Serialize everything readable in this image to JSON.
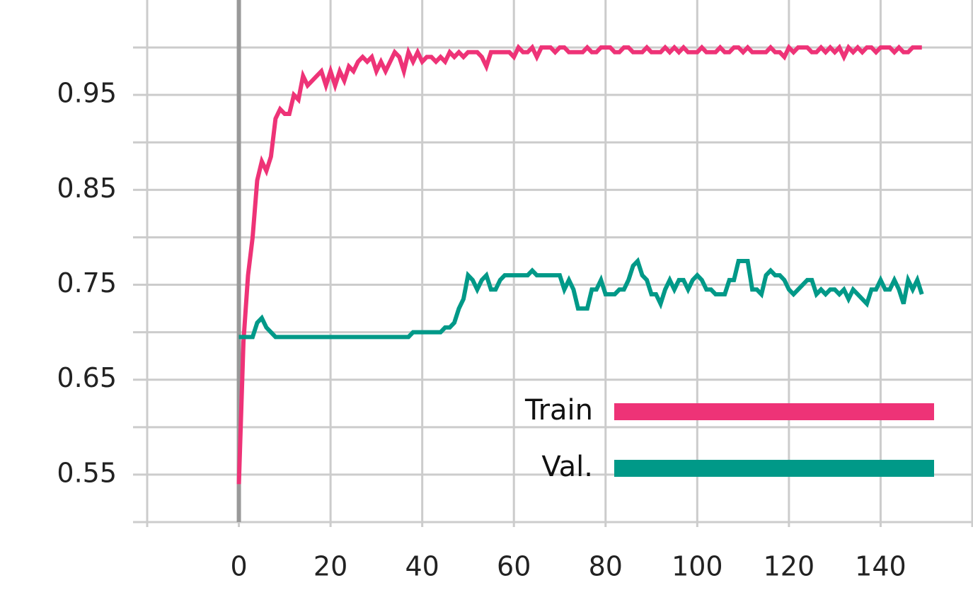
{
  "chart_data": {
    "type": "line",
    "x": [
      0,
      1,
      2,
      3,
      4,
      5,
      6,
      7,
      8,
      9,
      10,
      11,
      12,
      13,
      14,
      15,
      16,
      17,
      18,
      19,
      20,
      21,
      22,
      23,
      24,
      25,
      26,
      27,
      28,
      29,
      30,
      31,
      32,
      33,
      34,
      35,
      36,
      37,
      38,
      39,
      40,
      41,
      42,
      43,
      44,
      45,
      46,
      47,
      48,
      49,
      50,
      51,
      52,
      53,
      54,
      55,
      56,
      57,
      58,
      59,
      60,
      61,
      62,
      63,
      64,
      65,
      66,
      67,
      68,
      69,
      70,
      71,
      72,
      73,
      74,
      75,
      76,
      77,
      78,
      79,
      80,
      81,
      82,
      83,
      84,
      85,
      86,
      87,
      88,
      89,
      90,
      91,
      92,
      93,
      94,
      95,
      96,
      97,
      98,
      99,
      100,
      101,
      102,
      103,
      104,
      105,
      106,
      107,
      108,
      109,
      110,
      111,
      112,
      113,
      114,
      115,
      116,
      117,
      118,
      119,
      120,
      121,
      122,
      123,
      124,
      125,
      126,
      127,
      128,
      129,
      130,
      131,
      132,
      133,
      134,
      135,
      136,
      137,
      138,
      139,
      140,
      141,
      142,
      143,
      144,
      145,
      146,
      147,
      148,
      149
    ],
    "series": [
      {
        "name": "Train",
        "color": "#ee3377",
        "values": [
          0.54,
          0.69,
          0.76,
          0.8,
          0.86,
          0.88,
          0.87,
          0.885,
          0.925,
          0.935,
          0.93,
          0.93,
          0.95,
          0.945,
          0.97,
          0.96,
          0.965,
          0.97,
          0.975,
          0.96,
          0.975,
          0.96,
          0.975,
          0.965,
          0.98,
          0.975,
          0.985,
          0.99,
          0.985,
          0.99,
          0.975,
          0.985,
          0.975,
          0.985,
          0.995,
          0.99,
          0.975,
          0.995,
          0.985,
          0.995,
          0.985,
          0.99,
          0.99,
          0.985,
          0.99,
          0.985,
          0.995,
          0.99,
          0.995,
          0.99,
          0.995,
          0.995,
          0.995,
          0.99,
          0.98,
          0.995,
          0.995,
          0.995,
          0.995,
          0.995,
          0.99,
          1.0,
          0.995,
          0.995,
          1.0,
          0.99,
          1.0,
          1.0,
          1.0,
          0.995,
          1.0,
          1.0,
          0.995,
          0.995,
          0.995,
          0.995,
          1.0,
          0.995,
          0.995,
          1.0,
          1.0,
          1.0,
          0.995,
          0.995,
          1.0,
          1.0,
          0.995,
          0.995,
          0.995,
          1.0,
          0.995,
          0.995,
          0.995,
          1.0,
          0.995,
          1.0,
          0.995,
          1.0,
          0.995,
          0.995,
          0.995,
          1.0,
          0.995,
          0.995,
          0.995,
          1.0,
          0.995,
          0.995,
          1.0,
          1.0,
          0.995,
          1.0,
          0.995,
          0.995,
          0.995,
          0.995,
          1.0,
          0.995,
          0.995,
          0.99,
          1.0,
          0.995,
          1.0,
          1.0,
          1.0,
          0.995,
          0.995,
          1.0,
          0.995,
          1.0,
          0.995,
          1.0,
          0.99,
          1.0,
          0.995,
          1.0,
          0.995,
          1.0,
          1.0,
          0.995,
          1.0,
          1.0,
          1.0,
          0.995,
          1.0,
          0.995,
          0.995,
          1.0,
          1.0,
          1.0
        ]
      },
      {
        "name": "Val.",
        "color": "#009988",
        "values": [
          0.695,
          0.695,
          0.695,
          0.695,
          0.71,
          0.715,
          0.705,
          0.7,
          0.695,
          0.695,
          0.695,
          0.695,
          0.695,
          0.695,
          0.695,
          0.695,
          0.695,
          0.695,
          0.695,
          0.695,
          0.695,
          0.695,
          0.695,
          0.695,
          0.695,
          0.695,
          0.695,
          0.695,
          0.695,
          0.695,
          0.695,
          0.695,
          0.695,
          0.695,
          0.695,
          0.695,
          0.695,
          0.695,
          0.7,
          0.7,
          0.7,
          0.7,
          0.7,
          0.7,
          0.7,
          0.705,
          0.705,
          0.71,
          0.725,
          0.735,
          0.76,
          0.755,
          0.745,
          0.755,
          0.76,
          0.745,
          0.745,
          0.755,
          0.76,
          0.76,
          0.76,
          0.76,
          0.76,
          0.76,
          0.765,
          0.76,
          0.76,
          0.76,
          0.76,
          0.76,
          0.76,
          0.745,
          0.755,
          0.745,
          0.725,
          0.725,
          0.725,
          0.745,
          0.745,
          0.755,
          0.74,
          0.74,
          0.74,
          0.745,
          0.745,
          0.755,
          0.77,
          0.775,
          0.76,
          0.755,
          0.74,
          0.74,
          0.73,
          0.745,
          0.755,
          0.745,
          0.755,
          0.755,
          0.745,
          0.755,
          0.76,
          0.755,
          0.745,
          0.745,
          0.74,
          0.74,
          0.74,
          0.755,
          0.755,
          0.775,
          0.775,
          0.775,
          0.745,
          0.745,
          0.74,
          0.76,
          0.765,
          0.76,
          0.76,
          0.755,
          0.745,
          0.74,
          0.745,
          0.75,
          0.755,
          0.755,
          0.74,
          0.745,
          0.74,
          0.745,
          0.745,
          0.74,
          0.745,
          0.735,
          0.745,
          0.74,
          0.735,
          0.73,
          0.745,
          0.745,
          0.755,
          0.745,
          0.745,
          0.755,
          0.745,
          0.73,
          0.755,
          0.745,
          0.755,
          0.74
        ]
      }
    ],
    "xlim": [
      -20,
      160
    ],
    "xticks": [
      0,
      20,
      40,
      60,
      80,
      100,
      120,
      140
    ],
    "xminorticks": [
      -20,
      160
    ],
    "ylim": [
      0.5,
      1.05
    ],
    "yticks": [
      0.55,
      0.65,
      0.75,
      0.85,
      0.95
    ],
    "yminorticks": [
      0.5,
      0.6,
      0.7,
      0.8,
      0.9,
      1.0
    ],
    "grid": true,
    "legend": "lower right"
  }
}
